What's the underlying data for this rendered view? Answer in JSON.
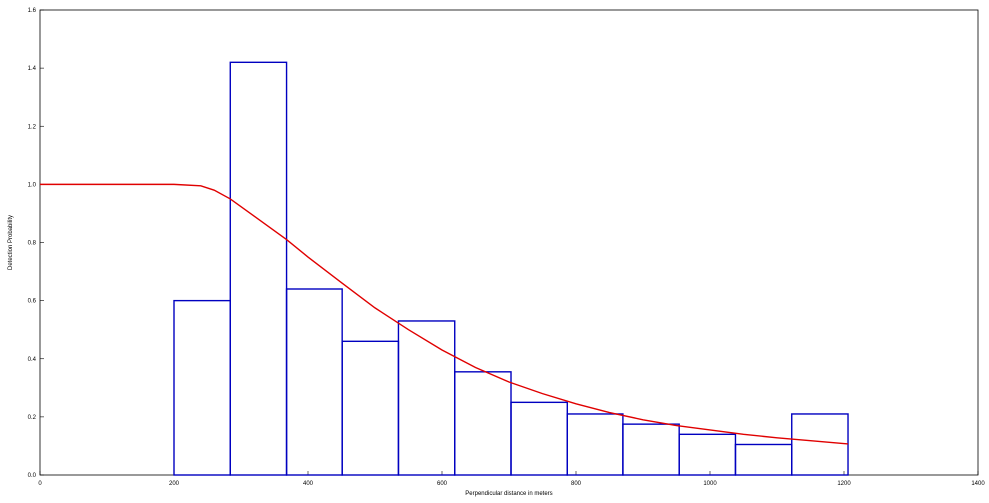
{
  "chart_data": {
    "type": "bar",
    "title": "",
    "xlabel": "Perpendicular distance in meters",
    "ylabel": "Detection Probability",
    "xlim": [
      0,
      1400
    ],
    "ylim": [
      0,
      1.6
    ],
    "x_ticks": [
      "0",
      "200",
      "400",
      "600",
      "800",
      "1000",
      "1200",
      "1400"
    ],
    "y_ticks": [
      "0.0",
      "0.2",
      "0.4",
      "0.6",
      "0.8",
      "1.0",
      "1.2",
      "1.4",
      "1.6"
    ],
    "grid": false,
    "histogram": {
      "color": "#0000c0",
      "bins": [
        {
          "x0": 200,
          "x1": 284,
          "value": 0.6
        },
        {
          "x0": 284,
          "x1": 368,
          "value": 1.42
        },
        {
          "x0": 368,
          "x1": 451,
          "value": 0.64
        },
        {
          "x0": 451,
          "x1": 535,
          "value": 0.46
        },
        {
          "x0": 535,
          "x1": 619,
          "value": 0.53
        },
        {
          "x0": 619,
          "x1": 703,
          "value": 0.355
        },
        {
          "x0": 703,
          "x1": 787,
          "value": 0.25
        },
        {
          "x0": 787,
          "x1": 870,
          "value": 0.21
        },
        {
          "x0": 870,
          "x1": 954,
          "value": 0.175
        },
        {
          "x0": 954,
          "x1": 1038,
          "value": 0.14
        },
        {
          "x0": 1038,
          "x1": 1122,
          "value": 0.105
        },
        {
          "x0": 1122,
          "x1": 1206,
          "value": 0.21
        }
      ]
    },
    "curve": {
      "type": "line",
      "color": "#e00000",
      "points": [
        [
          0,
          1.0
        ],
        [
          100,
          1.0
        ],
        [
          200,
          1.0
        ],
        [
          240,
          0.995
        ],
        [
          260,
          0.98
        ],
        [
          284,
          0.95
        ],
        [
          320,
          0.89
        ],
        [
          368,
          0.81
        ],
        [
          400,
          0.75
        ],
        [
          451,
          0.66
        ],
        [
          500,
          0.575
        ],
        [
          550,
          0.5
        ],
        [
          600,
          0.43
        ],
        [
          650,
          0.37
        ],
        [
          700,
          0.32
        ],
        [
          750,
          0.28
        ],
        [
          800,
          0.245
        ],
        [
          850,
          0.215
        ],
        [
          900,
          0.19
        ],
        [
          950,
          0.17
        ],
        [
          1000,
          0.155
        ],
        [
          1050,
          0.14
        ],
        [
          1100,
          0.128
        ],
        [
          1150,
          0.118
        ],
        [
          1206,
          0.107
        ]
      ]
    }
  }
}
